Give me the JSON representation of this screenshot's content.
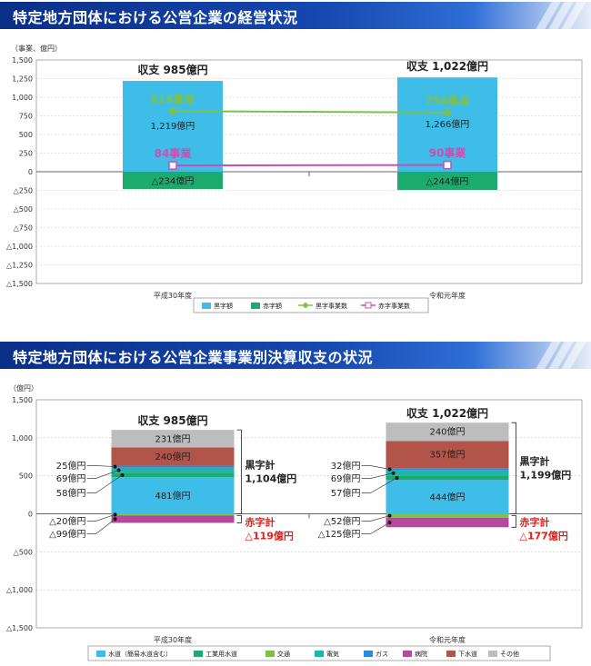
{
  "chart_data": [
    {
      "type": "bar",
      "title": "特定地方団体における公営企業の経営状況",
      "ylabel": "（事業、億円）",
      "ylim": [
        -1500,
        1500
      ],
      "yticks": [
        "1,500",
        "1,250",
        "1,000",
        "750",
        "500",
        "250",
        "0",
        "△250",
        "△500",
        "△750",
        "△1,000",
        "△1,250",
        "△1,500"
      ],
      "ytick_values": [
        1500,
        1250,
        1000,
        750,
        500,
        250,
        0,
        -250,
        -500,
        -750,
        -1000,
        -1250,
        -1500
      ],
      "categories": [
        "平成30年度",
        "令和元年度"
      ],
      "totals": [
        "収支 985億円",
        "収支 1,022億円"
      ],
      "series": [
        {
          "name": "黒字額",
          "kind": "bar",
          "values": [
            1219,
            1266
          ],
          "labels": [
            "1,219億円",
            "1,266億円"
          ],
          "color": "#3fbde9"
        },
        {
          "name": "赤字額",
          "kind": "bar",
          "values": [
            -234,
            -244
          ],
          "labels": [
            "△234億円",
            "△244億円"
          ],
          "color": "#1bab6c"
        },
        {
          "name": "黒字事業数",
          "kind": "line",
          "values": [
            814,
            794
          ],
          "labels": [
            "814事業",
            "794事業"
          ],
          "color": "#7cc24a"
        },
        {
          "name": "赤字事業数",
          "kind": "line",
          "values": [
            84,
            90
          ],
          "labels": [
            "84事業",
            "90事業"
          ],
          "color": "#c94fb2"
        }
      ],
      "legend": "bottom",
      "grid": true
    },
    {
      "type": "bar",
      "stacked": true,
      "title": "特定地方団体における公営企業事業別決算収支の状況",
      "ylabel": "（億円）",
      "ylim": [
        -1500,
        1500
      ],
      "yticks": [
        "1,500",
        "1,000",
        "500",
        "0",
        "△500",
        "△1,000",
        "△1,500"
      ],
      "ytick_values": [
        1500,
        1000,
        500,
        0,
        -500,
        -1000,
        -1500
      ],
      "categories": [
        "平成30年度",
        "令和元年度"
      ],
      "totals": [
        "収支 985億円",
        "収支 1,022億円"
      ],
      "surplus_labels": [
        [
          "黒字計",
          "1,104億円"
        ],
        [
          "黒字計",
          "1,199億円"
        ]
      ],
      "deficit_labels": [
        [
          "赤字計",
          "△119億円"
        ],
        [
          "赤字計",
          "△177億円"
        ]
      ],
      "series": [
        {
          "name": "水道（簡易水道含む）",
          "color": "#3fbde9",
          "pos": [
            481,
            444
          ],
          "neg": [
            0,
            0
          ]
        },
        {
          "name": "工業用水道",
          "color": "#1bab6c",
          "pos": [
            58,
            57
          ],
          "neg": [
            0,
            0
          ]
        },
        {
          "name": "交通",
          "color": "#7cc24a",
          "pos": [
            0,
            0
          ],
          "neg": [
            -20,
            -52
          ]
        },
        {
          "name": "電気",
          "color": "#23b3ad",
          "pos": [
            69,
            69
          ],
          "neg": [
            0,
            0
          ]
        },
        {
          "name": "ガス",
          "color": "#2e8ad8",
          "pos": [
            25,
            32
          ],
          "neg": [
            0,
            0
          ]
        },
        {
          "name": "病院",
          "color": "#b34a9e",
          "pos": [
            0,
            0
          ],
          "neg": [
            -99,
            -125
          ]
        },
        {
          "name": "下水道",
          "color": "#b3544a",
          "pos": [
            240,
            357
          ],
          "neg": [
            0,
            0
          ]
        },
        {
          "name": "その他",
          "color": "#bdbdbd",
          "pos": [
            231,
            240
          ],
          "neg": [
            0,
            0
          ]
        }
      ],
      "segment_labels": [
        [
          "481億円",
          "240億円",
          "231億円"
        ],
        [
          "444億円",
          "357億円",
          "240億円"
        ]
      ],
      "callouts": [
        {
          "pos": [
            "25億円",
            "69億円",
            "58億円"
          ],
          "neg": [
            "△20億円",
            "△99億円"
          ]
        },
        {
          "pos": [
            "32億円",
            "69億円",
            "57億円"
          ],
          "neg": [
            "△52億円",
            "△125億円"
          ]
        }
      ],
      "legend": "bottom",
      "grid": true
    }
  ]
}
